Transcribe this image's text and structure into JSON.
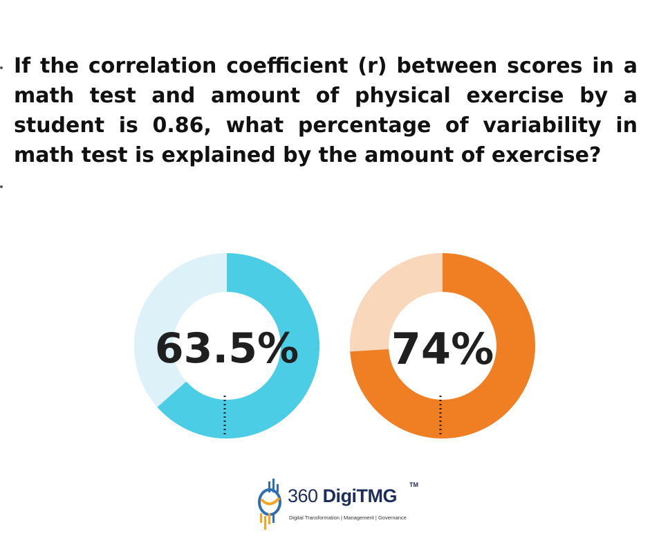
{
  "question": {
    "text": "If the correlation coefficient (r) between scores in a math test and amount of physical exercise by a student is 0.86, what percentage of variability in math test is explained by the amount of exercise?"
  },
  "options": [
    {
      "value_label": "63.5%",
      "fraction": 0.635,
      "fill_color": "#4bcde6",
      "track_color": "#dcf2f8"
    },
    {
      "value_label": "74%",
      "fraction": 0.74,
      "fill_color": "#f07f24",
      "track_color": "#f9d7bb"
    }
  ],
  "logo": {
    "brand_prefix": "360 ",
    "brand_bold": "DigiTMG",
    "trademark": "TM",
    "tagline": "Digital Transformation | Management | Governance"
  }
}
